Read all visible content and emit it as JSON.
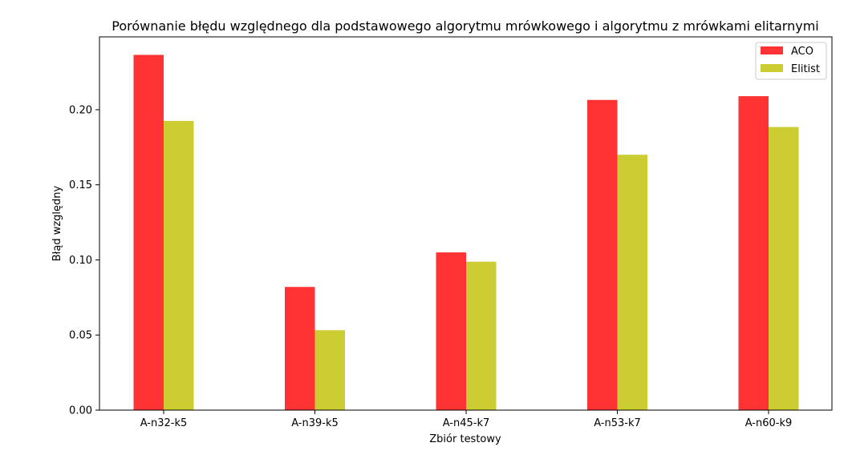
{
  "chart_data": {
    "type": "bar",
    "title": "Porównanie błędu względnego dla podstawowego algorytmu mrówkowego i algorytmu z mrówkami elitarnymi",
    "xlabel": "Zbiór testowy",
    "ylabel": "Błąd względny",
    "categories": [
      "A-n32-k5",
      "A-n39-k5",
      "A-n45-k7",
      "A-n53-k7",
      "A-n60-k9"
    ],
    "series": [
      {
        "name": "ACO",
        "color": "#ff3333",
        "values": [
          0.2365,
          0.082,
          0.105,
          0.2065,
          0.209
        ]
      },
      {
        "name": "Elitist",
        "color": "#cccc33",
        "values": [
          0.1925,
          0.0532,
          0.0988,
          0.17,
          0.1885
        ]
      }
    ],
    "ylim": [
      0,
      0.2485
    ],
    "yticks": [
      "0.00",
      "0.05",
      "0.10",
      "0.15",
      "0.20"
    ],
    "ytick_values": [
      0,
      0.05,
      0.1,
      0.15,
      0.2
    ],
    "legend_position": "top-right",
    "grid": false
  }
}
